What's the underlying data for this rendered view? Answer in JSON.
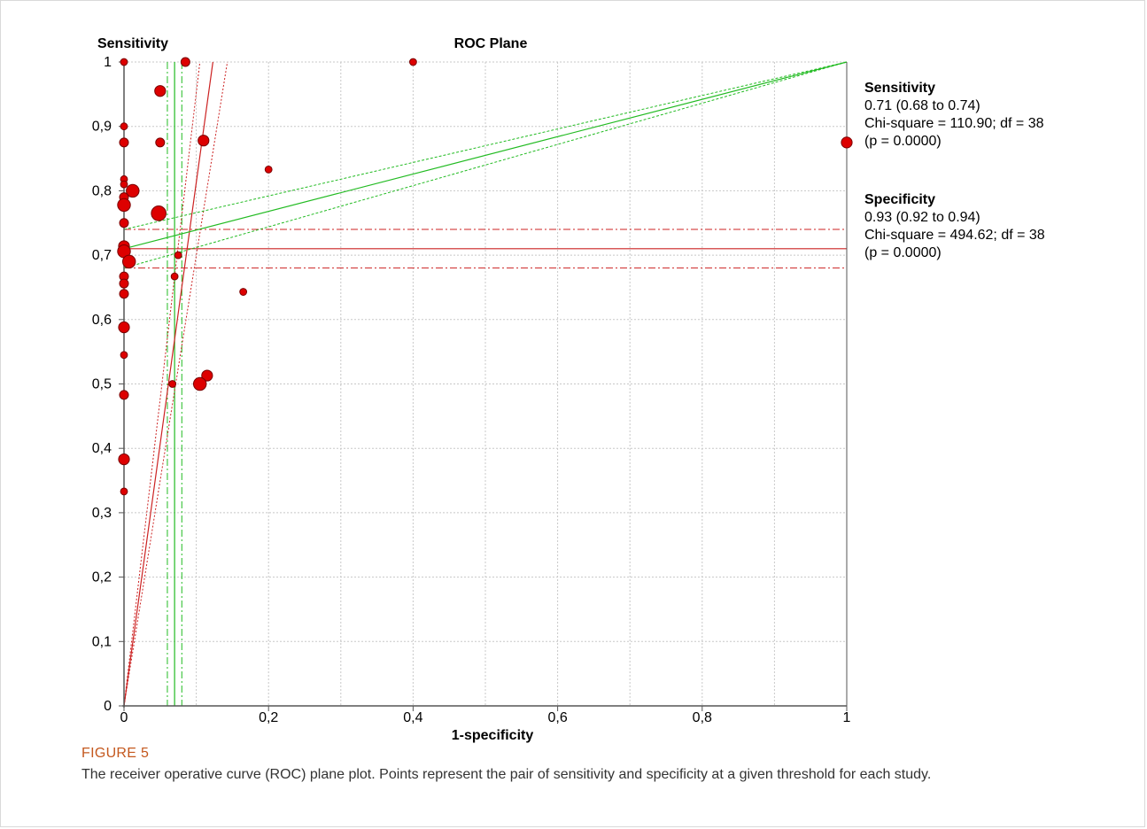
{
  "chart_data": {
    "type": "scatter",
    "title": "ROC Plane",
    "xlabel": "1-specificity",
    "ylabel": "Sensitivity",
    "xlim": [
      0,
      1
    ],
    "ylim": [
      0,
      1
    ],
    "x_ticks": [
      0,
      0.2,
      0.4,
      0.6,
      0.8,
      1
    ],
    "x_tick_labels": [
      "0",
      "0,2",
      "0,4",
      "0,6",
      "0,8",
      "1"
    ],
    "y_ticks": [
      0,
      0.1,
      0.2,
      0.3,
      0.4,
      0.5,
      0.6,
      0.7,
      0.8,
      0.9,
      1
    ],
    "y_tick_labels": [
      "0",
      "0,1",
      "0,2",
      "0,3",
      "0,4",
      "0,5",
      "0,6",
      "0,7",
      "0,8",
      "0,9",
      "1"
    ],
    "grid": true,
    "point_color": "#dd0000",
    "pooled_color": "#cc2222",
    "summary_color": "#22bb22",
    "points": [
      {
        "x": 0.0,
        "y": 1.0,
        "size": 1
      },
      {
        "x": 0.085,
        "y": 1.0,
        "size": 2
      },
      {
        "x": 0.4,
        "y": 1.0,
        "size": 1
      },
      {
        "x": 0.05,
        "y": 0.955,
        "size": 3
      },
      {
        "x": 0.0,
        "y": 0.9,
        "size": 1
      },
      {
        "x": 0.0,
        "y": 0.875,
        "size": 2
      },
      {
        "x": 0.05,
        "y": 0.875,
        "size": 2
      },
      {
        "x": 0.11,
        "y": 0.878,
        "size": 3
      },
      {
        "x": 1.0,
        "y": 0.875,
        "size": 3
      },
      {
        "x": 0.2,
        "y": 0.833,
        "size": 1
      },
      {
        "x": 0.0,
        "y": 0.818,
        "size": 1
      },
      {
        "x": 0.0,
        "y": 0.81,
        "size": 1
      },
      {
        "x": 0.012,
        "y": 0.8,
        "size": 4
      },
      {
        "x": 0.0,
        "y": 0.79,
        "size": 2
      },
      {
        "x": 0.0,
        "y": 0.778,
        "size": 4
      },
      {
        "x": 0.048,
        "y": 0.765,
        "size": 5
      },
      {
        "x": 0.0,
        "y": 0.75,
        "size": 2
      },
      {
        "x": 0.0,
        "y": 0.714,
        "size": 3
      },
      {
        "x": 0.0,
        "y": 0.706,
        "size": 4
      },
      {
        "x": 0.075,
        "y": 0.7,
        "size": 1
      },
      {
        "x": 0.007,
        "y": 0.69,
        "size": 4
      },
      {
        "x": 0.0,
        "y": 0.667,
        "size": 2
      },
      {
        "x": 0.07,
        "y": 0.667,
        "size": 1
      },
      {
        "x": 0.0,
        "y": 0.656,
        "size": 2
      },
      {
        "x": 0.165,
        "y": 0.643,
        "size": 1
      },
      {
        "x": 0.0,
        "y": 0.64,
        "size": 2
      },
      {
        "x": 0.0,
        "y": 0.588,
        "size": 3
      },
      {
        "x": 0.0,
        "y": 0.545,
        "size": 1
      },
      {
        "x": 0.115,
        "y": 0.513,
        "size": 3
      },
      {
        "x": 0.067,
        "y": 0.5,
        "size": 1
      },
      {
        "x": 0.105,
        "y": 0.5,
        "size": 4
      },
      {
        "x": 0.0,
        "y": 0.483,
        "size": 2
      },
      {
        "x": 0.0,
        "y": 0.383,
        "size": 3
      },
      {
        "x": 0.0,
        "y": 0.333,
        "size": 1
      }
    ],
    "pooled_sensitivity": {
      "estimate": 0.71,
      "lower": 0.68,
      "upper": 0.74
    },
    "pooled_fpr": {
      "estimate": 0.07,
      "lower": 0.06,
      "upper": 0.08
    }
  },
  "panel": {
    "sensitivity": {
      "heading": "Sensitivity",
      "estimate": "0.71 (0.68 to 0.74)",
      "chi": "Chi-square = 110.90; df = 38",
      "p": "(p = 0.0000)"
    },
    "specificity": {
      "heading": "Specificity",
      "estimate": "0.93 (0.92 to 0.94)",
      "chi": "Chi-square = 494.62; df = 38",
      "p": "(p = 0.0000)"
    }
  },
  "figure": {
    "label": "FIGURE 5",
    "caption": "The receiver operative curve (ROC) plane plot. Points represent the pair of sensitivity and specificity at a given threshold for each study."
  }
}
